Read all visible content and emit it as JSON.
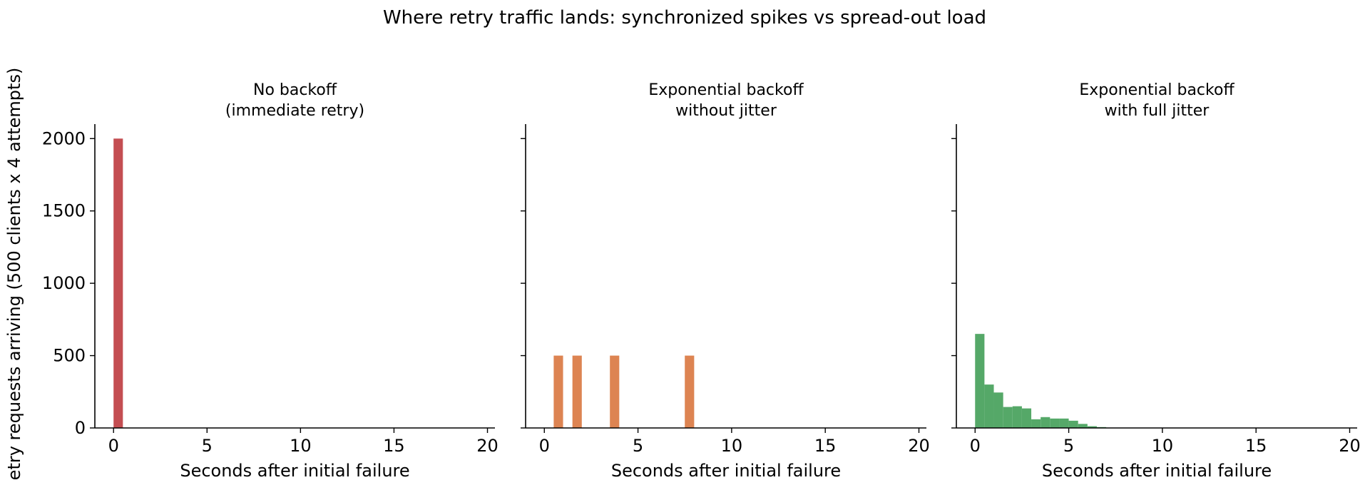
{
  "figure": {
    "title": "Where retry traffic lands: synchronized spikes vs spread-out load",
    "ylabel": "etry requests arriving (500 clients x 4 attempts)"
  },
  "chart_data": [
    {
      "type": "bar",
      "title_lines": [
        "No backoff",
        "(immediate retry)"
      ],
      "xlabel": "Seconds after initial failure",
      "xlim": [
        -1,
        20.4
      ],
      "ylim": [
        0,
        2100
      ],
      "x_ticks": [
        0,
        5,
        10,
        15,
        20
      ],
      "y_ticks": [
        0,
        500,
        1000,
        1500,
        2000
      ],
      "bin_width": 0.5,
      "color": "#c44e52",
      "bins": [
        {
          "x": 0.0,
          "value": 2000
        }
      ]
    },
    {
      "type": "bar",
      "title_lines": [
        "Exponential backoff",
        "without jitter"
      ],
      "xlabel": "Seconds after initial failure",
      "xlim": [
        -1,
        20.4
      ],
      "ylim": [
        0,
        2100
      ],
      "x_ticks": [
        0,
        5,
        10,
        15,
        20
      ],
      "y_ticks": [
        0,
        500,
        1000,
        1500,
        2000
      ],
      "bin_width": 0.5,
      "color": "#dd8452",
      "bins": [
        {
          "x": 0.5,
          "value": 500
        },
        {
          "x": 1.5,
          "value": 500
        },
        {
          "x": 3.5,
          "value": 500
        },
        {
          "x": 7.5,
          "value": 500
        }
      ]
    },
    {
      "type": "bar",
      "title_lines": [
        "Exponential backoff",
        "with full jitter"
      ],
      "xlabel": "Seconds after initial failure",
      "xlim": [
        -1,
        20.4
      ],
      "ylim": [
        0,
        2100
      ],
      "x_ticks": [
        0,
        5,
        10,
        15,
        20
      ],
      "y_ticks": [
        0,
        500,
        1000,
        1500,
        2000
      ],
      "bin_width": 0.5,
      "color": "#55a868",
      "bins": [
        {
          "x": 0.0,
          "value": 650
        },
        {
          "x": 0.5,
          "value": 300
        },
        {
          "x": 1.0,
          "value": 245
        },
        {
          "x": 1.5,
          "value": 145
        },
        {
          "x": 2.0,
          "value": 150
        },
        {
          "x": 2.5,
          "value": 135
        },
        {
          "x": 3.0,
          "value": 60
        },
        {
          "x": 3.5,
          "value": 75
        },
        {
          "x": 4.0,
          "value": 65
        },
        {
          "x": 4.5,
          "value": 65
        },
        {
          "x": 5.0,
          "value": 50
        },
        {
          "x": 5.5,
          "value": 28
        },
        {
          "x": 6.0,
          "value": 12
        },
        {
          "x": 6.5,
          "value": 6
        },
        {
          "x": 7.0,
          "value": 2
        }
      ]
    }
  ]
}
